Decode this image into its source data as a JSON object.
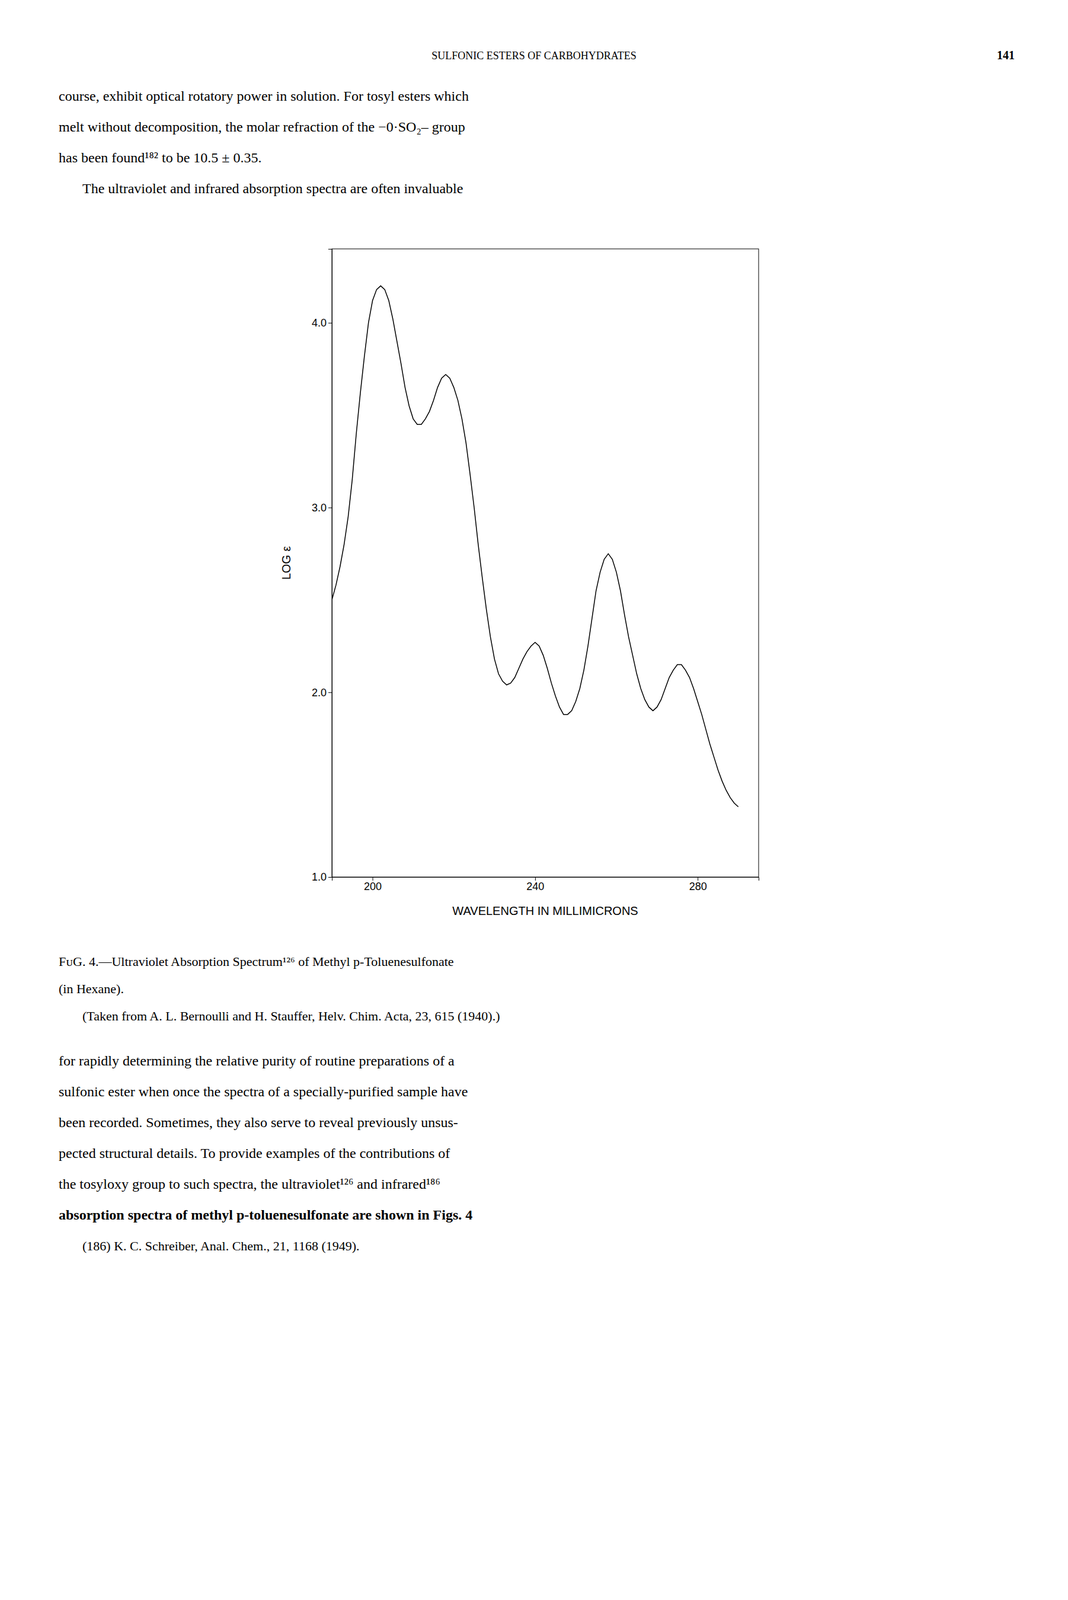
{
  "page": {
    "header": "SULFONIC ESTERS OF CARBOHYDRATES",
    "page_number": "141",
    "body_before": [
      "course, exhibit optical rotatory power in solution. For tosyl esters which",
      "melt without decomposition, the molar refraction of the −0·SO₂– group",
      "has been found¹⁸² to be 10.5 ± 0.35.",
      "The ultraviolet and infrared absorption spectra are often invaluable"
    ],
    "caption": [
      "FᴜG. 4.—Ultraviolet Absorption Spectrum¹²⁶ of Methyl p-Toluenesulfonate",
      "(in Hexane).",
      "(Taken from A. L. Bernoulli and H. Stauffer, Helv. Chim. Acta, 23, 615 (1940).)"
    ],
    "body_after": [
      "for rapidly determining the relative purity of routine preparations of a",
      "sulfonic ester when once the spectra of a specially-purified sample have",
      "been recorded. Sometimes, they also serve to reveal previously unsus-",
      "pected structural details. To provide examples of the contributions of",
      "the tosyloxy group to such spectra, the ultraviolet¹²⁶ and infrared¹⁸⁶",
      "absorption spectra of methyl p-toluenesulfonate are shown in Figs. 4"
    ],
    "footnote": "(186) K. C. Schreiber, Anal. Chem., 21, 1168 (1949)."
  },
  "chart_data": {
    "type": "line",
    "xlabel": "WAVELENGTH IN MILLIMICRONS",
    "ylabel": "LOG ε",
    "xlim": [
      190,
      295
    ],
    "ylim": [
      1.0,
      4.4
    ],
    "xticks": [
      200,
      240,
      280
    ],
    "yticks": [
      {
        "value": 1.0,
        "label": "1.0"
      },
      {
        "value": 2.0,
        "label": "2.0"
      },
      {
        "value": 3.0,
        "label": "3.0"
      },
      {
        "value": 4.0,
        "label": "4.0"
      }
    ],
    "grid": false,
    "color": "#000000",
    "x": [
      190,
      191,
      192,
      193,
      194,
      195,
      196,
      197,
      198,
      199,
      200,
      201,
      202,
      203,
      204,
      205,
      206,
      207,
      208,
      209,
      210,
      211,
      212,
      213,
      214,
      215,
      216,
      217,
      218,
      219,
      220,
      221,
      222,
      223,
      224,
      225,
      226,
      227,
      228,
      229,
      230,
      231,
      232,
      233,
      234,
      235,
      236,
      237,
      238,
      239,
      240,
      241,
      242,
      243,
      244,
      245,
      246,
      247,
      248,
      249,
      250,
      251,
      252,
      253,
      254,
      255,
      256,
      257,
      258,
      259,
      260,
      261,
      262,
      263,
      264,
      265,
      266,
      267,
      268,
      269,
      270,
      271,
      272,
      273,
      274,
      275,
      276,
      277,
      278,
      279,
      280,
      281,
      282,
      283,
      284,
      285,
      286,
      287,
      288,
      289,
      290
    ],
    "values": [
      2.5,
      2.58,
      2.68,
      2.8,
      2.95,
      3.15,
      3.4,
      3.62,
      3.82,
      4.0,
      4.12,
      4.18,
      4.2,
      4.18,
      4.12,
      4.02,
      3.9,
      3.78,
      3.65,
      3.55,
      3.48,
      3.45,
      3.45,
      3.48,
      3.52,
      3.58,
      3.65,
      3.7,
      3.72,
      3.7,
      3.65,
      3.58,
      3.48,
      3.35,
      3.18,
      3.0,
      2.8,
      2.62,
      2.45,
      2.3,
      2.18,
      2.1,
      2.06,
      2.04,
      2.05,
      2.08,
      2.13,
      2.18,
      2.22,
      2.25,
      2.27,
      2.25,
      2.2,
      2.13,
      2.05,
      1.98,
      1.92,
      1.88,
      1.88,
      1.9,
      1.95,
      2.02,
      2.12,
      2.25,
      2.4,
      2.55,
      2.65,
      2.72,
      2.75,
      2.72,
      2.65,
      2.55,
      2.42,
      2.3,
      2.2,
      2.1,
      2.02,
      1.96,
      1.92,
      1.9,
      1.92,
      1.96,
      2.02,
      2.08,
      2.12,
      2.15,
      2.15,
      2.12,
      2.08,
      2.02,
      1.95,
      1.88,
      1.8,
      1.72,
      1.65,
      1.58,
      1.52,
      1.47,
      1.43,
      1.4,
      1.38
    ]
  }
}
